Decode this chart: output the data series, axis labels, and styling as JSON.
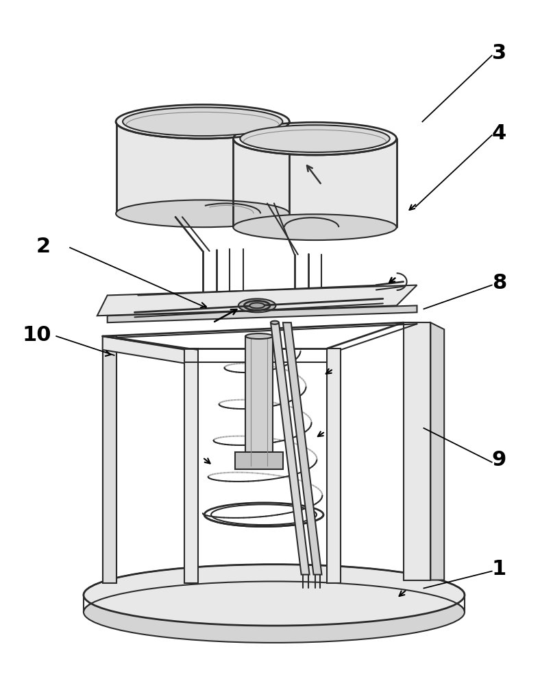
{
  "bg_color": "#ffffff",
  "lc": "#2a2a2a",
  "lc_gray": "#888888",
  "lc_light": "#aaaaaa",
  "lw_main": 1.5,
  "lw_thin": 0.8,
  "lw_thick": 2.0,
  "shade_light": "#e8e8e8",
  "shade_mid": "#d4d4d4",
  "shade_dark": "#c0c0c0",
  "label_fs": 22,
  "figw": 7.88,
  "figh": 10.0
}
